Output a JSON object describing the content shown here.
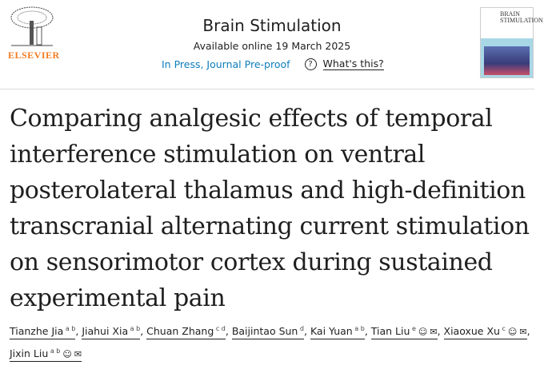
{
  "header": {
    "publisher_logo": "ELSEVIER",
    "journal_title": "Brain Stimulation",
    "available_online": "Available online 19 March 2025",
    "status": "In Press, Journal Pre-proof",
    "whats_this": "What's this?",
    "cover_title": "BRAIN STIMULATION"
  },
  "article": {
    "title": "Comparing analgesic effects of temporal interference stimulation on ventral posterolateral thalamus and high-definition transcranial alternating current stimulation on sensorimotor cortex during sustained experimental pain"
  },
  "authors": [
    {
      "name": "Tianzhe Jia",
      "aff": "a b",
      "corresponding": false
    },
    {
      "name": "Jiahui Xia",
      "aff": "a b",
      "corresponding": false
    },
    {
      "name": "Chuan Zhang",
      "aff": "c d",
      "corresponding": false
    },
    {
      "name": "Baijintao Sun",
      "aff": "d",
      "corresponding": false
    },
    {
      "name": "Kai Yuan",
      "aff": "a b",
      "corresponding": false
    },
    {
      "name": "Tian Liu",
      "aff": "e",
      "corresponding": true
    },
    {
      "name": "Xiaoxue Xu",
      "aff": "c",
      "corresponding": true
    },
    {
      "name": "Jixin Liu",
      "aff": "a b",
      "corresponding": true
    }
  ],
  "colors": {
    "brand": "#f37b21",
    "link": "#0c7dbb"
  }
}
